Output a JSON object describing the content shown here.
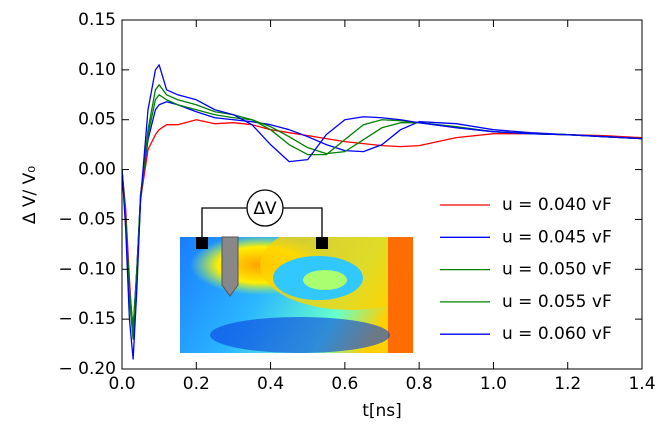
{
  "chart_data": {
    "type": "line",
    "xlabel": "t[ns]",
    "ylabel": "Δ V/ V₀",
    "inset_label": "ΔV",
    "x": [
      0,
      0.01,
      0.02,
      0.03,
      0.04,
      0.05,
      0.07,
      0.09,
      0.1,
      0.12,
      0.15,
      0.2,
      0.25,
      0.3,
      0.35,
      0.4,
      0.45,
      0.5,
      0.55,
      0.6,
      0.65,
      0.7,
      0.75,
      0.8,
      0.9,
      1.0,
      1.1,
      1.2,
      1.3,
      1.4
    ],
    "series": [
      {
        "name": "u = 0.040 vF",
        "color": "#ff0000",
        "values": [
          0,
          -0.04,
          -0.11,
          -0.17,
          -0.1,
          -0.03,
          0.02,
          0.035,
          0.04,
          0.045,
          0.045,
          0.05,
          0.046,
          0.047,
          0.045,
          0.04,
          0.037,
          0.034,
          0.031,
          0.028,
          0.026,
          0.024,
          0.023,
          0.024,
          0.032,
          0.036,
          0.036,
          0.035,
          0.034,
          0.032
        ]
      },
      {
        "name": "u = 0.045 vF",
        "color": "#0000ff",
        "values": [
          0,
          -0.05,
          -0.12,
          -0.16,
          -0.1,
          -0.025,
          0.03,
          0.06,
          0.065,
          0.068,
          0.065,
          0.058,
          0.052,
          0.05,
          0.048,
          0.045,
          0.04,
          0.033,
          0.025,
          0.019,
          0.018,
          0.025,
          0.04,
          0.048,
          0.046,
          0.04,
          0.037,
          0.035,
          0.033,
          0.031
        ]
      },
      {
        "name": "u = 0.050 vF",
        "color": "#008000",
        "values": [
          0,
          -0.05,
          -0.12,
          -0.16,
          -0.1,
          -0.025,
          0.035,
          0.07,
          0.075,
          0.07,
          0.065,
          0.06,
          0.055,
          0.052,
          0.05,
          0.043,
          0.033,
          0.022,
          0.016,
          0.018,
          0.03,
          0.042,
          0.047,
          0.047,
          0.043,
          0.038,
          0.036,
          0.035,
          0.033,
          0.031
        ]
      },
      {
        "name": "u = 0.055 vF",
        "color": "#008000",
        "values": [
          0,
          -0.05,
          -0.13,
          -0.17,
          -0.11,
          -0.03,
          0.04,
          0.08,
          0.085,
          0.075,
          0.07,
          0.065,
          0.058,
          0.055,
          0.05,
          0.04,
          0.025,
          0.015,
          0.015,
          0.03,
          0.045,
          0.05,
          0.049,
          0.047,
          0.042,
          0.038,
          0.036,
          0.035,
          0.033,
          0.031
        ]
      },
      {
        "name": "u = 0.060 vF",
        "color": "#0000ff",
        "values": [
          0,
          -0.06,
          -0.15,
          -0.19,
          -0.12,
          -0.03,
          0.06,
          0.1,
          0.105,
          0.08,
          0.075,
          0.07,
          0.06,
          0.055,
          0.045,
          0.025,
          0.008,
          0.01,
          0.035,
          0.05,
          0.053,
          0.052,
          0.05,
          0.047,
          0.042,
          0.038,
          0.036,
          0.035,
          0.033,
          0.031
        ]
      }
    ],
    "xlim": [
      0,
      1.4
    ],
    "ylim": [
      -0.2,
      0.15
    ],
    "xticks": [
      {
        "value": 0,
        "label": "0.0"
      },
      0.2,
      0.4,
      0.6,
      0.8,
      {
        "value": 1,
        "label": "1.0"
      },
      1.2,
      1.4
    ],
    "yticks": [
      {
        "value": -0.2,
        "label": "− 0.20"
      },
      {
        "value": -0.15,
        "label": "− 0.15"
      },
      {
        "value": -0.1,
        "label": "− 0.10"
      },
      {
        "value": -0.05,
        "label": "− 0.05"
      },
      {
        "value": 0,
        "label": "0.00"
      },
      0.05,
      {
        "value": 0.1,
        "label": "0.10"
      },
      0.15
    ],
    "legend": "right"
  }
}
